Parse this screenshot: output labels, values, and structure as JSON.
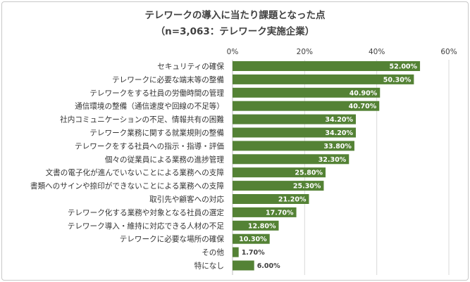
{
  "chart_data": {
    "type": "bar",
    "orientation": "horizontal",
    "title": "テレワークの導入に当たり課題となった点",
    "subtitle": "（n=3,063：テレワーク実施企業）",
    "xlim": [
      0,
      60
    ],
    "ticks": [
      "0%",
      "20%",
      "40%",
      "60%"
    ],
    "tick_values": [
      0,
      20,
      40,
      60
    ],
    "bar_color": "#548235",
    "grid": true,
    "categories": [
      "セキュリティの確保",
      "テレワークに必要な端末等の整備",
      "テレワークをする社員の労働時間の管理",
      "通信環境の整備（通信速度や回線の不足等）",
      "社内コミュニケーションの不足、情報共有の困難",
      "テレワーク業務に関する就業規則の整備",
      "テレワークをする社員への指示・指導・評価",
      "個々の従業員による業務の進捗管理",
      "文書の電子化が進んでいないことによる業務への支障",
      "書類へのサインや捺印ができないことによる業務への支障",
      "取引先や顧客への対応",
      "テレワーク化する業務や対象となる社員の選定",
      "テレワーク導入・維持に対応できる人材の不足",
      "テレワークに必要な場所の確保",
      "その他",
      "特になし"
    ],
    "values": [
      52.0,
      50.3,
      40.9,
      40.7,
      34.2,
      34.2,
      33.8,
      32.3,
      25.8,
      25.3,
      21.2,
      17.7,
      12.8,
      10.3,
      1.7,
      6.0
    ],
    "value_labels": [
      "52.00%",
      "50.30%",
      "40.90%",
      "40.70%",
      "34.20%",
      "34.20%",
      "33.80%",
      "32.30%",
      "25.80%",
      "25.30%",
      "21.20%",
      "17.70%",
      "12.80%",
      "10.30%",
      "1.70%",
      "6.00%"
    ]
  }
}
